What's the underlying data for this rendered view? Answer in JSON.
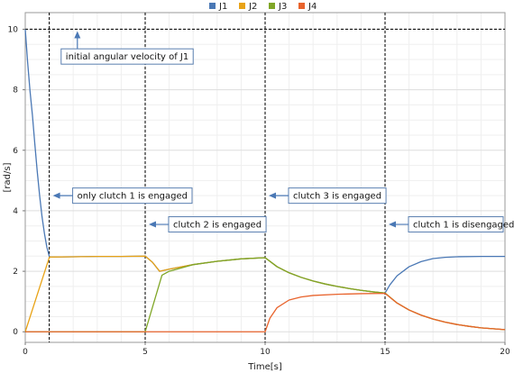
{
  "chart_data": {
    "type": "line",
    "xlabel": "Time[s]",
    "ylabel": "[rad/s]",
    "xlim": [
      0,
      20
    ],
    "ylim": [
      -0.35,
      10.55
    ],
    "xticks": [
      0,
      5,
      10,
      15,
      20
    ],
    "yticks": [
      0,
      2,
      4,
      6,
      8,
      10
    ],
    "grid": true,
    "legend_position": "top-center",
    "series": [
      {
        "name": "J1",
        "color": "#4a78b5",
        "points": [
          [
            0,
            10
          ],
          [
            0.1,
            8.9
          ],
          [
            0.2,
            7.95
          ],
          [
            0.3,
            7.15
          ],
          [
            0.4,
            6.2
          ],
          [
            0.5,
            5.3
          ],
          [
            0.6,
            4.5
          ],
          [
            0.7,
            3.8
          ],
          [
            0.8,
            3.25
          ],
          [
            0.9,
            2.8
          ],
          [
            1.0,
            2.5
          ],
          [
            1.02,
            2.47
          ],
          [
            2,
            2.48
          ],
          [
            3,
            2.49
          ],
          [
            4,
            2.49
          ],
          [
            5,
            2.5
          ],
          [
            5.3,
            2.3
          ],
          [
            5.6,
            2.0
          ],
          [
            6,
            2.07
          ],
          [
            7,
            2.22
          ],
          [
            8,
            2.33
          ],
          [
            9,
            2.41
          ],
          [
            10,
            2.45
          ],
          [
            10.5,
            2.15
          ],
          [
            11,
            1.95
          ],
          [
            11.5,
            1.8
          ],
          [
            12,
            1.68
          ],
          [
            12.5,
            1.58
          ],
          [
            13,
            1.5
          ],
          [
            13.5,
            1.43
          ],
          [
            14,
            1.37
          ],
          [
            14.5,
            1.32
          ],
          [
            15,
            1.28
          ],
          [
            15.2,
            1.55
          ],
          [
            15.5,
            1.85
          ],
          [
            16,
            2.15
          ],
          [
            16.5,
            2.32
          ],
          [
            17,
            2.42
          ],
          [
            17.5,
            2.46
          ],
          [
            18,
            2.48
          ],
          [
            19,
            2.49
          ],
          [
            20,
            2.49
          ]
        ]
      },
      {
        "name": "J2",
        "color": "#e8a317",
        "points": [
          [
            0,
            0
          ],
          [
            1.0,
            2.45
          ],
          [
            1.02,
            2.47
          ],
          [
            2,
            2.48
          ],
          [
            3,
            2.49
          ],
          [
            4,
            2.49
          ],
          [
            5,
            2.5
          ],
          [
            5.3,
            2.3
          ],
          [
            5.6,
            2.0
          ],
          [
            6,
            2.07
          ],
          [
            7,
            2.22
          ],
          [
            8,
            2.33
          ],
          [
            9,
            2.41
          ],
          [
            10,
            2.45
          ],
          [
            10.5,
            2.15
          ],
          [
            11,
            1.95
          ],
          [
            11.5,
            1.8
          ],
          [
            12,
            1.68
          ],
          [
            12.5,
            1.58
          ],
          [
            13,
            1.5
          ],
          [
            13.5,
            1.43
          ],
          [
            14,
            1.37
          ],
          [
            14.5,
            1.32
          ],
          [
            15,
            1.28
          ],
          [
            15.5,
            0.95
          ],
          [
            16,
            0.72
          ],
          [
            16.5,
            0.55
          ],
          [
            17,
            0.42
          ],
          [
            17.5,
            0.32
          ],
          [
            18,
            0.24
          ],
          [
            18.5,
            0.18
          ],
          [
            19,
            0.13
          ],
          [
            19.5,
            0.1
          ],
          [
            20,
            0.07
          ]
        ]
      },
      {
        "name": "J3",
        "color": "#7fa626",
        "points": [
          [
            0,
            0
          ],
          [
            5,
            0
          ],
          [
            5.7,
            1.87
          ],
          [
            6,
            2.0
          ],
          [
            7,
            2.22
          ],
          [
            8,
            2.33
          ],
          [
            9,
            2.41
          ],
          [
            10,
            2.45
          ],
          [
            10.5,
            2.15
          ],
          [
            11,
            1.95
          ],
          [
            11.5,
            1.8
          ],
          [
            12,
            1.68
          ],
          [
            12.5,
            1.58
          ],
          [
            13,
            1.5
          ],
          [
            13.5,
            1.43
          ],
          [
            14,
            1.37
          ],
          [
            14.5,
            1.32
          ],
          [
            15,
            1.28
          ],
          [
            15.5,
            0.95
          ],
          [
            16,
            0.72
          ],
          [
            16.5,
            0.55
          ],
          [
            17,
            0.42
          ],
          [
            17.5,
            0.32
          ],
          [
            18,
            0.24
          ],
          [
            18.5,
            0.18
          ],
          [
            19,
            0.13
          ],
          [
            19.5,
            0.1
          ],
          [
            20,
            0.07
          ]
        ]
      },
      {
        "name": "J4",
        "color": "#e8632c",
        "points": [
          [
            0,
            0
          ],
          [
            10,
            0
          ],
          [
            10.2,
            0.45
          ],
          [
            10.5,
            0.8
          ],
          [
            11,
            1.05
          ],
          [
            11.5,
            1.15
          ],
          [
            12,
            1.2
          ],
          [
            13,
            1.24
          ],
          [
            14,
            1.26
          ],
          [
            15,
            1.27
          ],
          [
            15.5,
            0.95
          ],
          [
            16,
            0.72
          ],
          [
            16.5,
            0.55
          ],
          [
            17,
            0.42
          ],
          [
            17.5,
            0.32
          ],
          [
            18,
            0.24
          ],
          [
            18.5,
            0.18
          ],
          [
            19,
            0.13
          ],
          [
            19.5,
            0.1
          ],
          [
            20,
            0.07
          ]
        ]
      }
    ],
    "reference_lines": {
      "vertical_x": [
        1,
        5,
        10,
        15
      ],
      "horizontal_y": [
        10
      ]
    },
    "annotations": [
      {
        "text": "initial angular velocity of J1",
        "arrow": "up",
        "x": 3.0,
        "y": 9.1,
        "arrow_to_y": 10.0
      },
      {
        "text": "only clutch 1 is engaged",
        "arrow": "left",
        "x": 1.15,
        "y": 4.5
      },
      {
        "text": "clutch 2 is engaged",
        "arrow": "left",
        "x": 5.15,
        "y": 3.55
      },
      {
        "text": "clutch 3 is engaged",
        "arrow": "left",
        "x": 10.15,
        "y": 4.5
      },
      {
        "text": "clutch 1 is disengaged",
        "arrow": "left",
        "x": 15.15,
        "y": 3.55
      }
    ]
  }
}
